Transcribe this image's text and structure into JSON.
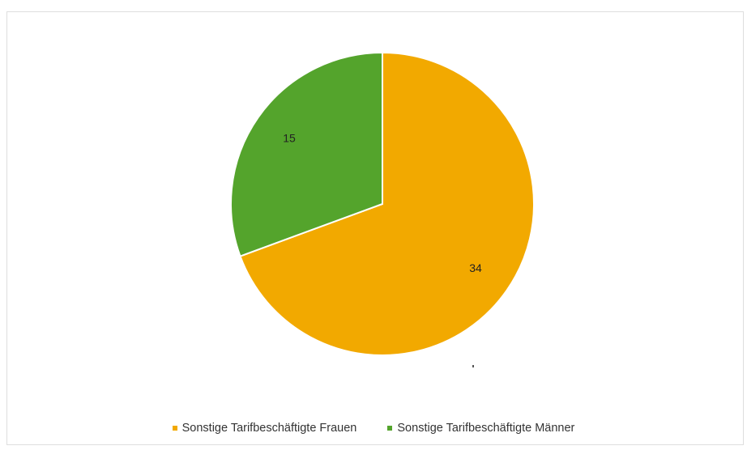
{
  "chart_data": {
    "type": "pie",
    "categories": [
      "Sonstige Tarifbeschäftigte Frauen",
      "Sonstige Tarifbeschäftigte Männer"
    ],
    "values": [
      34,
      15
    ],
    "colors": [
      "#f2a900",
      "#54a42c"
    ],
    "data_labels": [
      "34",
      "15"
    ],
    "legend_position": "bottom",
    "start_angle_deg": 0,
    "direction": "clockwise"
  },
  "legend": {
    "items": [
      {
        "label": "Sonstige Tarifbeschäftigte Frauen",
        "color": "#f2a900"
      },
      {
        "label": "Sonstige Tarifbeschäftigte Männer",
        "color": "#54a42c"
      }
    ]
  }
}
